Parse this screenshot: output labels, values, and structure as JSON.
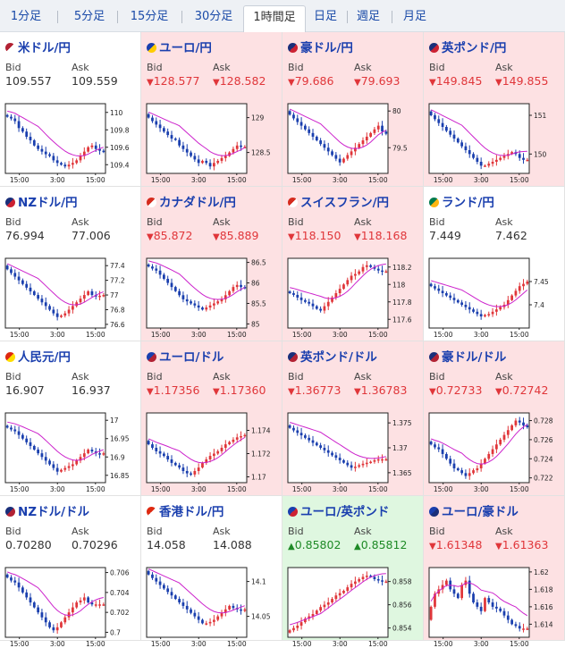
{
  "tabs": [
    {
      "label": "1分足",
      "active": false
    },
    {
      "label": "5分足",
      "active": false
    },
    {
      "label": "15分足",
      "active": false
    },
    {
      "label": "30分足",
      "active": false
    },
    {
      "label": "1時間足",
      "active": true
    },
    {
      "label": "日足",
      "active": false
    },
    {
      "label": "週足",
      "active": false
    },
    {
      "label": "月足",
      "active": false
    }
  ],
  "colors": {
    "down": "#e0363a",
    "up": "#1e8a26",
    "ma": "#cc22cc",
    "bear": "#1a3fae",
    "bull": "#e0363a"
  },
  "bid_label": "Bid",
  "ask_label": "Ask",
  "x_ticks": [
    "15:00",
    "3:00",
    "15:00"
  ],
  "pairs": [
    {
      "name": "米ドル/円",
      "bid": "109.557",
      "ask": "109.559",
      "dir": "none",
      "flag": "us-flag-icon",
      "y_ticks": [
        "110",
        "109.8",
        "109.6",
        "109.4"
      ],
      "ylim": [
        109.3,
        110.1
      ],
      "closes": [
        109.95,
        109.93,
        109.9,
        109.82,
        109.78,
        109.72,
        109.68,
        109.62,
        109.58,
        109.55,
        109.52,
        109.5,
        109.45,
        109.42,
        109.4,
        109.38,
        109.4,
        109.42,
        109.45,
        109.5,
        109.55,
        109.6,
        109.62,
        109.58,
        109.56,
        109.55
      ]
    },
    {
      "name": "ユーロ/円",
      "bid": "128.577",
      "ask": "128.582",
      "dir": "down",
      "flag": "eu-flag-icon",
      "y_ticks": [
        "129",
        "128.5"
      ],
      "ylim": [
        128.2,
        129.2
      ],
      "closes": [
        129.0,
        128.95,
        128.9,
        128.85,
        128.8,
        128.75,
        128.7,
        128.68,
        128.6,
        128.55,
        128.5,
        128.45,
        128.4,
        128.35,
        128.38,
        128.35,
        128.3,
        128.35,
        128.38,
        128.42,
        128.45,
        128.5,
        128.55,
        128.6,
        128.58,
        128.58
      ]
    },
    {
      "name": "豪ドル/円",
      "bid": "79.686",
      "ask": "79.693",
      "dir": "down",
      "flag": "au-flag-icon",
      "y_ticks": [
        "80",
        "79.5"
      ],
      "ylim": [
        79.15,
        80.1
      ],
      "closes": [
        79.95,
        79.9,
        79.85,
        79.8,
        79.75,
        79.7,
        79.65,
        79.6,
        79.55,
        79.5,
        79.45,
        79.4,
        79.35,
        79.3,
        79.35,
        79.4,
        79.45,
        79.5,
        79.55,
        79.6,
        79.65,
        79.7,
        79.75,
        79.8,
        79.72,
        79.69
      ]
    },
    {
      "name": "英ポンド/円",
      "bid": "149.845",
      "ask": "149.855",
      "dir": "down",
      "flag": "gb-flag-icon",
      "y_ticks": [
        "151",
        "150"
      ],
      "ylim": [
        149.5,
        151.3
      ],
      "closes": [
        151.0,
        150.9,
        150.8,
        150.7,
        150.6,
        150.5,
        150.4,
        150.3,
        150.2,
        150.1,
        150.0,
        149.9,
        149.8,
        149.7,
        149.7,
        149.75,
        149.8,
        149.85,
        149.9,
        149.95,
        150.0,
        150.05,
        150.0,
        149.9,
        149.85,
        149.85
      ]
    },
    {
      "name": "NZドル/円",
      "bid": "76.994",
      "ask": "77.006",
      "dir": "none",
      "flag": "nz-flag-icon",
      "y_ticks": [
        "77.4",
        "77.2",
        "77",
        "76.8",
        "76.6"
      ],
      "ylim": [
        76.55,
        77.5
      ],
      "closes": [
        77.35,
        77.3,
        77.25,
        77.2,
        77.15,
        77.1,
        77.05,
        77.0,
        76.95,
        76.9,
        76.85,
        76.8,
        76.75,
        76.7,
        76.72,
        76.75,
        76.8,
        76.85,
        76.9,
        76.95,
        77.0,
        77.05,
        77.0,
        76.98,
        76.99,
        77.0
      ]
    },
    {
      "name": "カナダドル/円",
      "bid": "85.872",
      "ask": "85.889",
      "dir": "down",
      "flag": "ca-flag-icon",
      "y_ticks": [
        "86.5",
        "86",
        "85.5",
        "85"
      ],
      "ylim": [
        84.9,
        86.6
      ],
      "closes": [
        86.4,
        86.35,
        86.3,
        86.2,
        86.1,
        86.0,
        85.9,
        85.8,
        85.7,
        85.6,
        85.55,
        85.5,
        85.45,
        85.4,
        85.35,
        85.4,
        85.45,
        85.5,
        85.55,
        85.6,
        85.7,
        85.8,
        85.9,
        85.95,
        85.9,
        85.88
      ]
    },
    {
      "name": "スイスフラン/円",
      "bid": "118.150",
      "ask": "118.168",
      "dir": "down",
      "flag": "ch-flag-icon",
      "y_ticks": [
        "118.2",
        "118",
        "117.8",
        "117.6"
      ],
      "ylim": [
        117.5,
        118.3
      ],
      "closes": [
        117.9,
        117.88,
        117.85,
        117.82,
        117.8,
        117.78,
        117.75,
        117.72,
        117.7,
        117.75,
        117.8,
        117.85,
        117.9,
        117.95,
        118.0,
        118.05,
        118.1,
        118.12,
        118.15,
        118.2,
        118.22,
        118.2,
        118.18,
        118.16,
        118.15,
        118.15
      ]
    },
    {
      "name": "ランド/円",
      "bid": "7.449",
      "ask": "7.462",
      "dir": "none",
      "flag": "za-flag-icon",
      "y_ticks": [
        "7.45",
        "7.4"
      ],
      "ylim": [
        7.35,
        7.5
      ],
      "closes": [
        7.44,
        7.435,
        7.43,
        7.425,
        7.42,
        7.415,
        7.41,
        7.405,
        7.4,
        7.395,
        7.39,
        7.385,
        7.38,
        7.375,
        7.378,
        7.38,
        7.385,
        7.39,
        7.395,
        7.4,
        7.41,
        7.42,
        7.43,
        7.44,
        7.445,
        7.45
      ]
    },
    {
      "name": "人民元/円",
      "bid": "16.907",
      "ask": "16.937",
      "dir": "none",
      "flag": "cn-flag-icon",
      "y_ticks": [
        "17",
        "16.95",
        "16.9",
        "16.85"
      ],
      "ylim": [
        16.83,
        17.02
      ],
      "closes": [
        16.98,
        16.975,
        16.97,
        16.96,
        16.95,
        16.94,
        16.93,
        16.92,
        16.91,
        16.9,
        16.89,
        16.88,
        16.87,
        16.86,
        16.865,
        16.87,
        16.875,
        16.88,
        16.89,
        16.9,
        16.91,
        16.92,
        16.915,
        16.91,
        16.907,
        16.91
      ]
    },
    {
      "name": "ユーロ/ドル",
      "bid": "1.17356",
      "ask": "1.17360",
      "dir": "down",
      "flag": "eu-us-flag-icon",
      "y_ticks": [
        "1.174",
        "1.172",
        "1.17"
      ],
      "ylim": [
        1.1695,
        1.1755
      ],
      "closes": [
        1.1728,
        1.1725,
        1.1722,
        1.172,
        1.1718,
        1.1715,
        1.1712,
        1.171,
        1.1708,
        1.1705,
        1.1703,
        1.1702,
        1.1705,
        1.1708,
        1.1712,
        1.1715,
        1.1718,
        1.172,
        1.1722,
        1.1725,
        1.1728,
        1.173,
        1.1732,
        1.1734,
        1.1735,
        1.1736
      ]
    },
    {
      "name": "英ポンド/ドル",
      "bid": "1.36773",
      "ask": "1.36783",
      "dir": "down",
      "flag": "gb-us-flag-icon",
      "y_ticks": [
        "1.375",
        "1.37",
        "1.365"
      ],
      "ylim": [
        1.363,
        1.377
      ],
      "closes": [
        1.374,
        1.3735,
        1.373,
        1.3725,
        1.372,
        1.3715,
        1.371,
        1.3705,
        1.37,
        1.3695,
        1.369,
        1.3685,
        1.368,
        1.3675,
        1.367,
        1.3665,
        1.366,
        1.3662,
        1.3665,
        1.3668,
        1.367,
        1.3672,
        1.3675,
        1.3677,
        1.3677,
        1.3677
      ]
    },
    {
      "name": "豪ドル/ドル",
      "bid": "0.72733",
      "ask": "0.72742",
      "dir": "down",
      "flag": "au-us-flag-icon",
      "y_ticks": [
        "0.728",
        "0.726",
        "0.724",
        "0.722"
      ],
      "ylim": [
        0.7215,
        0.7288
      ],
      "closes": [
        0.7255,
        0.7252,
        0.725,
        0.7245,
        0.724,
        0.7235,
        0.723,
        0.7228,
        0.7225,
        0.7222,
        0.7225,
        0.7228,
        0.723,
        0.7235,
        0.724,
        0.7245,
        0.725,
        0.7255,
        0.726,
        0.7265,
        0.727,
        0.7275,
        0.728,
        0.7278,
        0.7275,
        0.7273
      ]
    },
    {
      "name": "NZドル/ドル",
      "bid": "0.70280",
      "ask": "0.70296",
      "dir": "none",
      "flag": "nz-us-flag-icon",
      "y_ticks": [
        "0.706",
        "0.704",
        "0.702",
        "0.7"
      ],
      "ylim": [
        0.6995,
        0.7065
      ],
      "closes": [
        0.7055,
        0.7052,
        0.705,
        0.7045,
        0.704,
        0.7035,
        0.703,
        0.7025,
        0.702,
        0.7015,
        0.701,
        0.7005,
        0.7002,
        0.7005,
        0.701,
        0.7015,
        0.702,
        0.7025,
        0.703,
        0.7032,
        0.7035,
        0.703,
        0.7028,
        0.7028,
        0.7028,
        0.7028
      ]
    },
    {
      "name": "香港ドル/円",
      "bid": "14.058",
      "ask": "14.088",
      "dir": "none",
      "flag": "hk-flag-icon",
      "y_ticks": [
        "14.1",
        "14.05"
      ],
      "ylim": [
        14.02,
        14.12
      ],
      "closes": [
        14.11,
        14.105,
        14.1,
        14.095,
        14.09,
        14.085,
        14.08,
        14.075,
        14.07,
        14.065,
        14.06,
        14.055,
        14.05,
        14.045,
        14.04,
        14.04,
        14.042,
        14.045,
        14.05,
        14.055,
        14.06,
        14.065,
        14.062,
        14.06,
        14.058,
        14.06
      ]
    },
    {
      "name": "ユーロ/英ポンド",
      "bid": "0.85802",
      "ask": "0.85812",
      "dir": "up",
      "flag": "eu-gb-flag-icon",
      "y_ticks": [
        "0.858",
        "0.856",
        "0.854"
      ],
      "ylim": [
        0.8532,
        0.8592
      ],
      "closes": [
        0.8538,
        0.854,
        0.8542,
        0.8545,
        0.8548,
        0.855,
        0.8552,
        0.8555,
        0.8558,
        0.856,
        0.8562,
        0.8565,
        0.8568,
        0.857,
        0.8572,
        0.8575,
        0.8578,
        0.858,
        0.8582,
        0.8584,
        0.8585,
        0.8584,
        0.8582,
        0.8581,
        0.858,
        0.858
      ]
    },
    {
      "name": "ユーロ/豪ドル",
      "bid": "1.61348",
      "ask": "1.61363",
      "dir": "down",
      "flag": "eu-au-flag-icon",
      "y_ticks": [
        "1.62",
        "1.618",
        "1.616",
        "1.614"
      ],
      "ylim": [
        1.6125,
        1.6205
      ],
      "closes": [
        1.616,
        1.6175,
        1.618,
        1.6185,
        1.619,
        1.618,
        1.6175,
        1.617,
        1.6185,
        1.619,
        1.6175,
        1.6165,
        1.616,
        1.6155,
        1.617,
        1.6165,
        1.616,
        1.6158,
        1.6155,
        1.615,
        1.6145,
        1.614,
        1.6138,
        1.6135,
        1.6135,
        1.6135
      ]
    }
  ]
}
